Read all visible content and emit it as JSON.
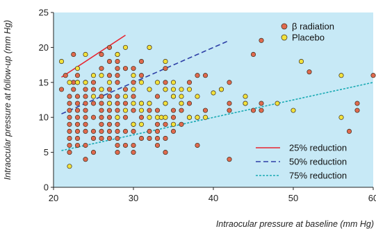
{
  "chart_data": {
    "type": "scatter",
    "title": "",
    "xlabel": "Intraocular pressure at baseline (mm Hg)",
    "ylabel": "Intraocular pressure at follow-up (mm Hg)",
    "xlim": [
      20,
      60
    ],
    "ylim": [
      0,
      25
    ],
    "xticks": [
      20,
      30,
      40,
      50,
      60
    ],
    "yticks": [
      0,
      5,
      10,
      15,
      20,
      25
    ],
    "grid": false,
    "background": "#c7e9f6",
    "legend_placement": "top-right (markers), bottom-right (lines)",
    "series": [
      {
        "name": "β radiation",
        "color": "#e06a4e",
        "points": [
          [
            21,
            14
          ],
          [
            21.5,
            16
          ],
          [
            22,
            13
          ],
          [
            22,
            12
          ],
          [
            22,
            11
          ],
          [
            22,
            10
          ],
          [
            22,
            9
          ],
          [
            22,
            8
          ],
          [
            22,
            7
          ],
          [
            22,
            6
          ],
          [
            22,
            5
          ],
          [
            22.5,
            19
          ],
          [
            22.5,
            15
          ],
          [
            22.5,
            14
          ],
          [
            23,
            16
          ],
          [
            23,
            15
          ],
          [
            23,
            13
          ],
          [
            23,
            12
          ],
          [
            23,
            11
          ],
          [
            23,
            10
          ],
          [
            23,
            9
          ],
          [
            23,
            8
          ],
          [
            23,
            7
          ],
          [
            23,
            6
          ],
          [
            24,
            15
          ],
          [
            24,
            14
          ],
          [
            24,
            13
          ],
          [
            24,
            12
          ],
          [
            24,
            11
          ],
          [
            24,
            10
          ],
          [
            24,
            9
          ],
          [
            24,
            8
          ],
          [
            24,
            6
          ],
          [
            24,
            4
          ],
          [
            25,
            15
          ],
          [
            25,
            14
          ],
          [
            25,
            12
          ],
          [
            25,
            10
          ],
          [
            25,
            8
          ],
          [
            25,
            7
          ],
          [
            25,
            5
          ],
          [
            26,
            19
          ],
          [
            26,
            17
          ],
          [
            26,
            14
          ],
          [
            26,
            13
          ],
          [
            26,
            12
          ],
          [
            26,
            11
          ],
          [
            26,
            10
          ],
          [
            26,
            9
          ],
          [
            26,
            8
          ],
          [
            26,
            7
          ],
          [
            27,
            20
          ],
          [
            27,
            18
          ],
          [
            27,
            16
          ],
          [
            27,
            14
          ],
          [
            27,
            13
          ],
          [
            27,
            12
          ],
          [
            27,
            11
          ],
          [
            27,
            10
          ],
          [
            27,
            9
          ],
          [
            27,
            8
          ],
          [
            27,
            7
          ],
          [
            28,
            19
          ],
          [
            28,
            18
          ],
          [
            28,
            17
          ],
          [
            28,
            16
          ],
          [
            28,
            15
          ],
          [
            28,
            13
          ],
          [
            28,
            12
          ],
          [
            28,
            11
          ],
          [
            28,
            10
          ],
          [
            28,
            9
          ],
          [
            28,
            8
          ],
          [
            28,
            7
          ],
          [
            28,
            6
          ],
          [
            28,
            5
          ],
          [
            29,
            17
          ],
          [
            29,
            14
          ],
          [
            29,
            12
          ],
          [
            29,
            10
          ],
          [
            29,
            8
          ],
          [
            29,
            6
          ],
          [
            30,
            17
          ],
          [
            30,
            15
          ],
          [
            30,
            13
          ],
          [
            30,
            11
          ],
          [
            30,
            9
          ],
          [
            30,
            8
          ],
          [
            30,
            6
          ],
          [
            30,
            5
          ],
          [
            31,
            18
          ],
          [
            31,
            16
          ],
          [
            31,
            12
          ],
          [
            31,
            10
          ],
          [
            31,
            7
          ],
          [
            32,
            14
          ],
          [
            32,
            12
          ],
          [
            32,
            11
          ],
          [
            32,
            8
          ],
          [
            32,
            7
          ],
          [
            33,
            13
          ],
          [
            33,
            11
          ],
          [
            33,
            9
          ],
          [
            33,
            8
          ],
          [
            33,
            7
          ],
          [
            33,
            6
          ],
          [
            34,
            17
          ],
          [
            34,
            15
          ],
          [
            34,
            14
          ],
          [
            34,
            12
          ],
          [
            34,
            9
          ],
          [
            34,
            7
          ],
          [
            34,
            5
          ],
          [
            35,
            13
          ],
          [
            35,
            11
          ],
          [
            35,
            10
          ],
          [
            35,
            8
          ],
          [
            36,
            12
          ],
          [
            36,
            11
          ],
          [
            36,
            9
          ],
          [
            37,
            15
          ],
          [
            37,
            12
          ],
          [
            37,
            10
          ],
          [
            38,
            16
          ],
          [
            38,
            10
          ],
          [
            38,
            6
          ],
          [
            39,
            16
          ],
          [
            39,
            11
          ],
          [
            41,
            14
          ],
          [
            42,
            15
          ],
          [
            42,
            12
          ],
          [
            42,
            11
          ],
          [
            42,
            4
          ],
          [
            44,
            12
          ],
          [
            45,
            11
          ],
          [
            45,
            19
          ],
          [
            46,
            21
          ],
          [
            46,
            12
          ],
          [
            46,
            11
          ],
          [
            52,
            16.5
          ],
          [
            57,
            8
          ],
          [
            58,
            12
          ],
          [
            58,
            11
          ],
          [
            60,
            16
          ]
        ]
      },
      {
        "name": "Placebo",
        "color": "#f2e23c",
        "points": [
          [
            21,
            18
          ],
          [
            22,
            3
          ],
          [
            22,
            15
          ],
          [
            23,
            15
          ],
          [
            23,
            17
          ],
          [
            24,
            19
          ],
          [
            24,
            15
          ],
          [
            25,
            13
          ],
          [
            25,
            16
          ],
          [
            26,
            16
          ],
          [
            26,
            14
          ],
          [
            27,
            15
          ],
          [
            27,
            12
          ],
          [
            28,
            19
          ],
          [
            28,
            10
          ],
          [
            29,
            20
          ],
          [
            29,
            13
          ],
          [
            29,
            11
          ],
          [
            30,
            16
          ],
          [
            30,
            14
          ],
          [
            30,
            12
          ],
          [
            30,
            9
          ],
          [
            31,
            15
          ],
          [
            31,
            12
          ],
          [
            31,
            11
          ],
          [
            31,
            9
          ],
          [
            32,
            20
          ],
          [
            32,
            20
          ],
          [
            32,
            14
          ],
          [
            32,
            12
          ],
          [
            32,
            10
          ],
          [
            33,
            15
          ],
          [
            33,
            10
          ],
          [
            33.5,
            10
          ],
          [
            34,
            18
          ],
          [
            34,
            14
          ],
          [
            34,
            12
          ],
          [
            34,
            10
          ],
          [
            35,
            15
          ],
          [
            35,
            14
          ],
          [
            35,
            13
          ],
          [
            35,
            9
          ],
          [
            36,
            14
          ],
          [
            36,
            13
          ],
          [
            36,
            12
          ],
          [
            37,
            14
          ],
          [
            37,
            10
          ],
          [
            38,
            13
          ],
          [
            38,
            10
          ],
          [
            39,
            10
          ],
          [
            40,
            13.5
          ],
          [
            41,
            14
          ],
          [
            44,
            13
          ],
          [
            44,
            12
          ],
          [
            48,
            12
          ],
          [
            50,
            11
          ],
          [
            51,
            18
          ],
          [
            56,
            16
          ],
          [
            56,
            10
          ]
        ]
      }
    ],
    "reference_lines": [
      {
        "name": "25% reduction",
        "color": "#e8232e",
        "dash": "solid",
        "x": [
          21,
          29
        ],
        "y": [
          15.75,
          21.75
        ]
      },
      {
        "name": "50% reduction",
        "color": "#2d3fa6",
        "dash": "dashed",
        "x": [
          21,
          42
        ],
        "y": [
          10.5,
          21
        ]
      },
      {
        "name": "75% reduction",
        "color": "#1aaab3",
        "dash": "dotted",
        "x": [
          21,
          60
        ],
        "y": [
          5.25,
          15
        ]
      }
    ]
  }
}
